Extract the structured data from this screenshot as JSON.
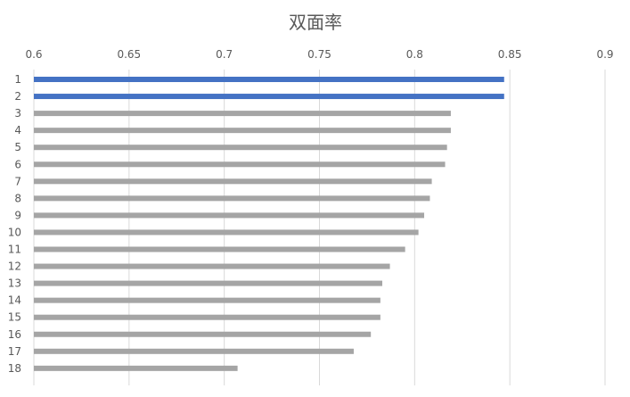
{
  "chart_data": {
    "type": "bar",
    "orientation": "horizontal",
    "title": "双面率",
    "xlim": [
      0.6,
      0.9
    ],
    "x_ticks": [
      "0.6",
      "0.65",
      "0.7",
      "0.75",
      "0.8",
      "0.85",
      "0.9"
    ],
    "x_tick_values": [
      0.6,
      0.65,
      0.7,
      0.75,
      0.8,
      0.85,
      0.9
    ],
    "x_axis_position": "top",
    "grid": true,
    "categories": [
      "1",
      "2",
      "3",
      "4",
      "5",
      "6",
      "7",
      "8",
      "9",
      "10",
      "11",
      "12",
      "13",
      "14",
      "15",
      "16",
      "17",
      "18"
    ],
    "values": [
      0.847,
      0.847,
      0.819,
      0.819,
      0.817,
      0.816,
      0.809,
      0.808,
      0.805,
      0.802,
      0.795,
      0.787,
      0.783,
      0.782,
      0.782,
      0.777,
      0.768,
      0.707
    ],
    "highlight_categories": [
      "1",
      "2"
    ],
    "colors": {
      "highlight": "#4472c4",
      "default": "#a5a5a5"
    }
  }
}
